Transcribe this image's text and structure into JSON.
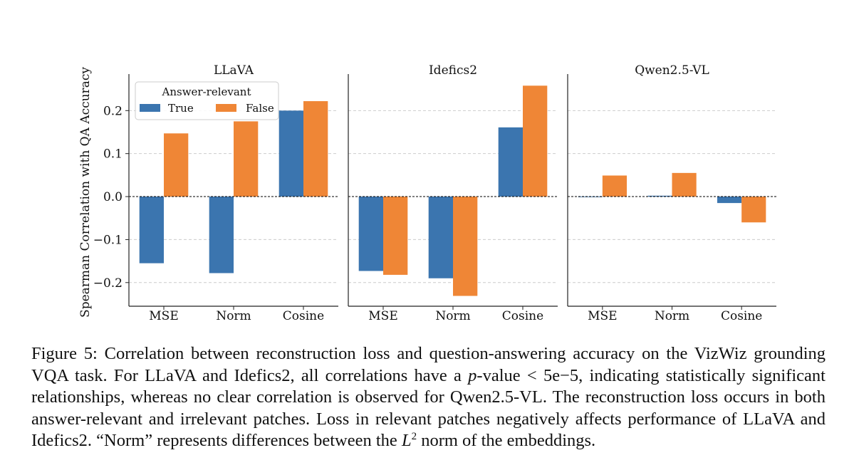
{
  "colors": {
    "true": "#3b75af",
    "false": "#ef8636",
    "grid": "#cccccc",
    "axis": "#222222"
  },
  "chart_data": {
    "type": "bar",
    "ylabel": "Spearman Correlation with QA Accuracy",
    "ylim": [
      -0.255,
      0.285
    ],
    "yticks": [
      0.2,
      0.1,
      0.0,
      -0.1,
      -0.2
    ],
    "ytick_labels": [
      "0.2",
      "0.1",
      "0.0",
      "−0.1",
      "−0.2"
    ],
    "grid": true,
    "zero_line": true,
    "legend": {
      "title": "Answer-relevant",
      "placement": "top-left",
      "entries": [
        "True",
        "False"
      ]
    },
    "categories": [
      "MSE",
      "Norm",
      "Cosine"
    ],
    "panels": [
      {
        "title": "LLaVA",
        "series": [
          {
            "name": "True",
            "values": [
              -0.155,
              -0.178,
              0.2
            ]
          },
          {
            "name": "False",
            "values": [
              0.147,
              0.175,
              0.222
            ]
          }
        ]
      },
      {
        "title": "Idefics2",
        "series": [
          {
            "name": "True",
            "values": [
              -0.173,
              -0.19,
              0.161
            ]
          },
          {
            "name": "False",
            "values": [
              -0.182,
              -0.231,
              0.258
            ]
          }
        ]
      },
      {
        "title": "Qwen2.5-VL",
        "series": [
          {
            "name": "True",
            "values": [
              0.0,
              0.002,
              -0.015
            ]
          },
          {
            "name": "False",
            "values": [
              0.049,
              0.055,
              -0.06
            ]
          }
        ]
      }
    ]
  },
  "caption": {
    "p1": "Figure 5: Correlation between reconstruction loss and question-answering accuracy on the VizWiz grounding VQA task. For LLaVA and Idefics2, all correlations have a ",
    "p_italic": "p",
    "p2": "-value < 5e−5, indicating statistically significant relationships, whereas no clear correlation is observed for Qwen2.5-VL. The reconstruction loss occurs in both answer-relevant and irrelevant patches. Loss in relevant patches negatively affects performance of LLaVA and Idefics2. “Norm” represents differences between the ",
    "l_italic": "L",
    "l_sup": "2",
    "p3": " norm of the embeddings."
  }
}
